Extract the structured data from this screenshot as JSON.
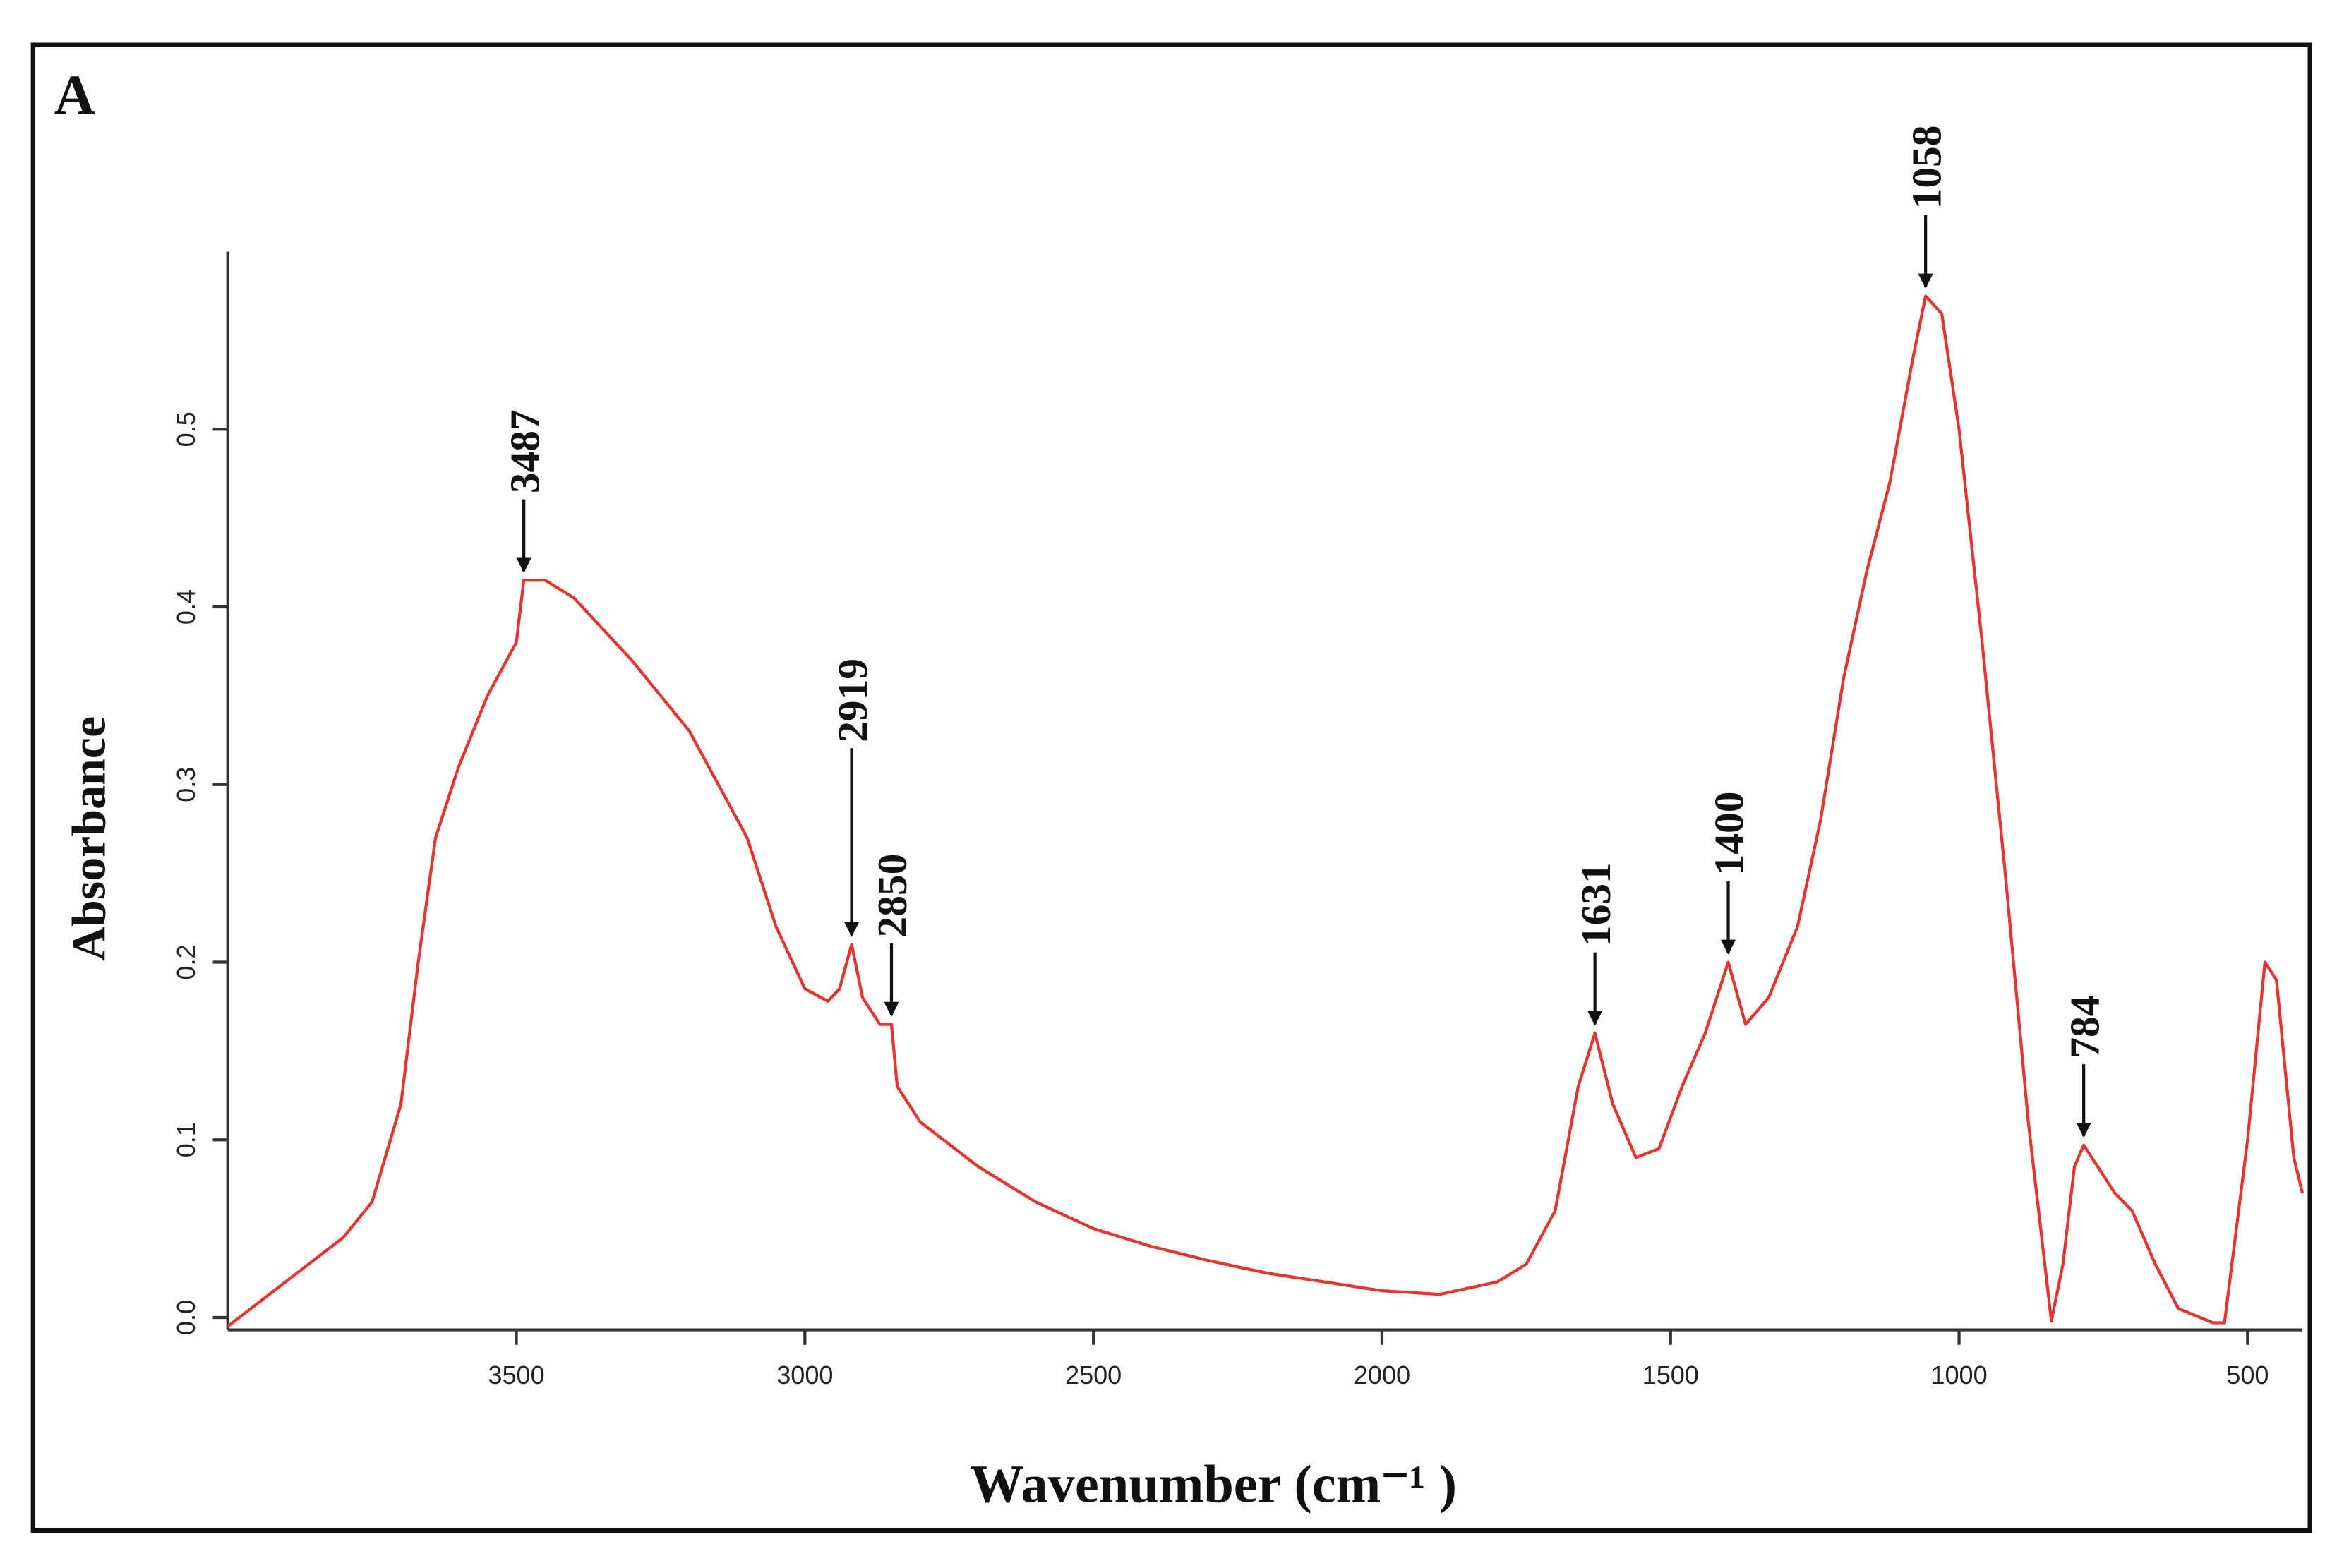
{
  "chart_data": {
    "type": "line",
    "panel_label": "A",
    "xlabel": "Wavenumber (cm⁻¹ )",
    "ylabel": "Absorbance",
    "x": [
      4000,
      3900,
      3800,
      3750,
      3700,
      3670,
      3640,
      3600,
      3550,
      3500,
      3487,
      3450,
      3400,
      3300,
      3200,
      3100,
      3050,
      3000,
      2960,
      2940,
      2919,
      2900,
      2870,
      2850,
      2840,
      2800,
      2700,
      2600,
      2500,
      2400,
      2300,
      2200,
      2100,
      2000,
      1900,
      1800,
      1750,
      1700,
      1660,
      1631,
      1600,
      1560,
      1520,
      1480,
      1440,
      1400,
      1370,
      1330,
      1280,
      1240,
      1200,
      1160,
      1120,
      1080,
      1058,
      1030,
      1000,
      960,
      920,
      880,
      840,
      820,
      800,
      784,
      760,
      730,
      700,
      660,
      620,
      560,
      540,
      500,
      470,
      450,
      420,
      405
    ],
    "series": [
      {
        "name": "Absorbance",
        "color": "#e8342f",
        "values": [
          -0.005,
          0.02,
          0.045,
          0.065,
          0.12,
          0.2,
          0.27,
          0.31,
          0.35,
          0.38,
          0.415,
          0.415,
          0.405,
          0.37,
          0.33,
          0.27,
          0.22,
          0.185,
          0.178,
          0.185,
          0.21,
          0.18,
          0.165,
          0.165,
          0.13,
          0.11,
          0.085,
          0.065,
          0.05,
          0.04,
          0.032,
          0.025,
          0.02,
          0.015,
          0.013,
          0.02,
          0.03,
          0.06,
          0.13,
          0.16,
          0.12,
          0.09,
          0.095,
          0.13,
          0.16,
          0.2,
          0.165,
          0.18,
          0.22,
          0.28,
          0.36,
          0.42,
          0.47,
          0.54,
          0.575,
          0.565,
          0.5,
          0.38,
          0.25,
          0.11,
          -0.002,
          0.03,
          0.085,
          0.097,
          0.085,
          0.07,
          0.06,
          0.03,
          0.005,
          -0.003,
          -0.003,
          0.1,
          0.2,
          0.19,
          0.09,
          0.07
        ]
      }
    ],
    "annotations": [
      {
        "text": "3487",
        "x": 3487,
        "y": 0.415
      },
      {
        "text": "2919",
        "x": 2919,
        "y": 0.21
      },
      {
        "text": "2850",
        "x": 2850,
        "y": 0.165
      },
      {
        "text": "1631",
        "x": 1631,
        "y": 0.16
      },
      {
        "text": "1400",
        "x": 1400,
        "y": 0.2
      },
      {
        "text": "1058",
        "x": 1058,
        "y": 0.575
      },
      {
        "text": "784",
        "x": 784,
        "y": 0.097
      }
    ],
    "xlim": [
      4000,
      405
    ],
    "xticks": [
      3500,
      3000,
      2500,
      2000,
      1500,
      1000,
      500
    ],
    "ylim": [
      -0.007,
      0.6
    ],
    "yticks": [
      {
        "value": 0,
        "label": "0.0"
      },
      0.1,
      0.2,
      0.3,
      0.4,
      0.5
    ]
  }
}
